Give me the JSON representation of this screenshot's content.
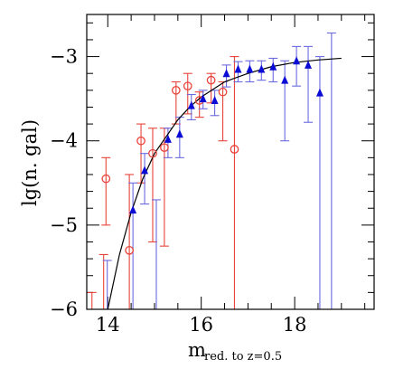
{
  "chart_data": {
    "type": "scatter",
    "xlabel": "m",
    "xlabel_subscript": "red. to z=0.5",
    "ylabel": "lg(n. gal)",
    "xlim": [
      13.55,
      19.7
    ],
    "ylim": [
      -6,
      -2.5
    ],
    "x_ticks": [
      14,
      16,
      18
    ],
    "x_tick_labels": [
      "14",
      "16",
      "18"
    ],
    "y_ticks": [
      -3,
      -4,
      -5,
      -6
    ],
    "y_tick_labels": [
      "−3",
      "−4",
      "−5",
      "−6"
    ],
    "grid": false,
    "legend": "none",
    "series": [
      {
        "marker": "open-circle",
        "color": "#e8443a",
        "points": [
          {
            "x": 13.7,
            "y": -6.35,
            "lo": -6.6,
            "hi": -5.8
          },
          {
            "x": 13.95,
            "y": -6.35,
            "lo": -6.6,
            "hi": -5.35
          },
          {
            "x": 14.0,
            "y": -4.45,
            "lo": -5.0,
            "hi": -4.2
          },
          {
            "x": 14.5,
            "y": -5.3,
            "lo": -6.6,
            "hi": -4.4
          },
          {
            "x": 14.75,
            "y": -4.0,
            "lo": -4.5,
            "hi": -3.8
          },
          {
            "x": 15.0,
            "y": -4.15,
            "lo": -5.2,
            "hi": -3.85
          },
          {
            "x": 15.25,
            "y": -4.08,
            "lo": -5.25,
            "hi": -3.85
          },
          {
            "x": 15.5,
            "y": -3.4,
            "lo": -3.8,
            "hi": -3.3
          },
          {
            "x": 15.75,
            "y": -3.35,
            "lo": -3.68,
            "hi": -3.2
          },
          {
            "x": 16.0,
            "y": -3.52,
            "lo": -3.72,
            "hi": -3.42
          },
          {
            "x": 16.25,
            "y": -3.28,
            "lo": -3.55,
            "hi": -3.2
          },
          {
            "x": 16.5,
            "y": -3.42,
            "lo": -4.0,
            "hi": -3.3
          },
          {
            "x": 16.75,
            "y": -4.1,
            "lo": -6.6,
            "hi": -3.0
          }
        ]
      },
      {
        "marker": "filled-triangle",
        "color": "#0b0bd6",
        "bar_color": "#6a6ae0",
        "points": [
          {
            "x": 13.95,
            "y": -6.35,
            "lo": -6.6,
            "hi": -5.42
          },
          {
            "x": 14.5,
            "y": -4.82,
            "lo": -6.6,
            "hi": -4.5
          },
          {
            "x": 14.75,
            "y": -4.35,
            "lo": -4.75,
            "hi": -4.15
          },
          {
            "x": 15.0,
            "y": -6.35,
            "lo": -6.6,
            "hi": -4.7
          },
          {
            "x": 15.25,
            "y": -3.98,
            "lo": -4.2,
            "hi": -3.85
          },
          {
            "x": 15.5,
            "y": -3.92,
            "lo": -4.2,
            "hi": -3.72
          },
          {
            "x": 15.75,
            "y": -3.58,
            "lo": -3.75,
            "hi": -3.45
          },
          {
            "x": 16.0,
            "y": -3.5,
            "lo": -3.62,
            "hi": -3.4
          },
          {
            "x": 16.25,
            "y": -3.52,
            "lo": -3.7,
            "hi": -3.4
          },
          {
            "x": 16.5,
            "y": -3.2,
            "lo": -3.36,
            "hi": -3.1
          },
          {
            "x": 16.75,
            "y": -3.15,
            "lo": -3.3,
            "hi": -3.06
          },
          {
            "x": 17.0,
            "y": -3.15,
            "lo": -3.3,
            "hi": -3.05
          },
          {
            "x": 17.25,
            "y": -3.15,
            "lo": -3.28,
            "hi": -3.05
          },
          {
            "x": 17.5,
            "y": -3.12,
            "lo": -3.3,
            "hi": -3.02
          },
          {
            "x": 17.75,
            "y": -3.28,
            "lo": -4.0,
            "hi": -3.05
          },
          {
            "x": 18.0,
            "y": -3.05,
            "lo": -3.35,
            "hi": -2.88
          },
          {
            "x": 18.25,
            "y": -3.1,
            "lo": -3.78,
            "hi": -2.88
          },
          {
            "x": 18.5,
            "y": -3.43,
            "lo": -6.6,
            "hi": -3.0
          },
          {
            "x": 18.75,
            "y": -6.35,
            "lo": -6.6,
            "hi": -2.72
          }
        ]
      }
    ],
    "fit_curve": {
      "color": "#000000",
      "points": [
        {
          "x": 14.0,
          "y": -6.0
        },
        {
          "x": 14.25,
          "y": -5.35
        },
        {
          "x": 14.5,
          "y": -4.85
        },
        {
          "x": 14.75,
          "y": -4.45
        },
        {
          "x": 15.0,
          "y": -4.15
        },
        {
          "x": 15.25,
          "y": -3.95
        },
        {
          "x": 15.5,
          "y": -3.75
        },
        {
          "x": 15.75,
          "y": -3.6
        },
        {
          "x": 16.0,
          "y": -3.48
        },
        {
          "x": 16.5,
          "y": -3.3
        },
        {
          "x": 17.0,
          "y": -3.2
        },
        {
          "x": 17.5,
          "y": -3.12
        },
        {
          "x": 18.0,
          "y": -3.07
        },
        {
          "x": 18.5,
          "y": -3.04
        },
        {
          "x": 19.0,
          "y": -3.02
        }
      ]
    }
  }
}
